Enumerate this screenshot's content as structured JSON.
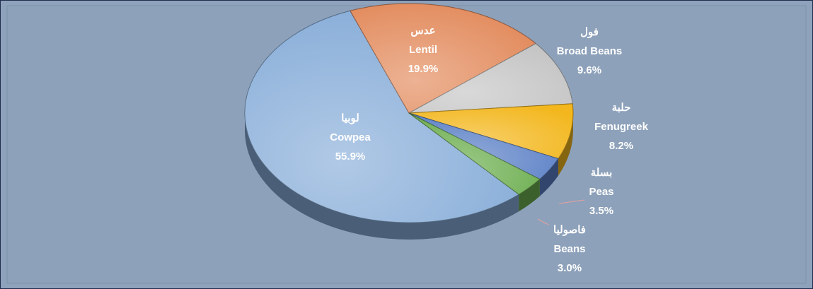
{
  "chart_data": {
    "type": "pie",
    "categories": [
      "Cowpea",
      "Lentil",
      "Broad Beans",
      "Fenugreek",
      "Peas",
      "Beans"
    ],
    "categories_arabic": [
      "لوبيا",
      "عدس",
      "فول",
      "حلبة",
      "بسلة",
      "فاصوليا"
    ],
    "values": [
      55.9,
      19.9,
      9.6,
      8.2,
      3.5,
      3.0
    ],
    "value_labels": [
      "55.9%",
      "19.9%",
      "9.6%",
      "8.2%",
      "3.5%",
      "3.0%"
    ],
    "colors": [
      "#86acd8",
      "#e2895a",
      "#c4c4c4",
      "#f3b71d",
      "#5b80c6",
      "#6cae4f"
    ]
  }
}
